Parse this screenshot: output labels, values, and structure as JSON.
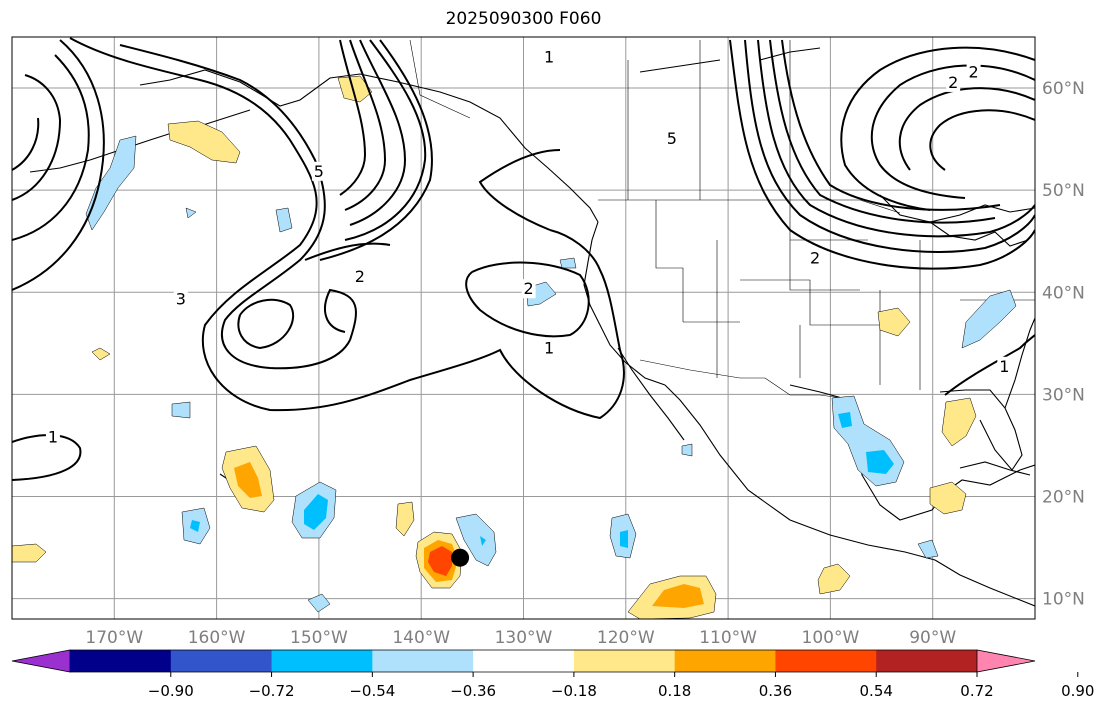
{
  "title": "2025090300 F060",
  "map": {
    "extent_lon": [
      -180,
      -80
    ],
    "extent_lat": [
      8,
      65
    ],
    "lon_ticks": [
      {
        "lon": -170,
        "label": "170°W"
      },
      {
        "lon": -160,
        "label": "160°W"
      },
      {
        "lon": -150,
        "label": "150°W"
      },
      {
        "lon": -140,
        "label": "140°W"
      },
      {
        "lon": -130,
        "label": "130°W"
      },
      {
        "lon": -120,
        "label": "120°W"
      },
      {
        "lon": -110,
        "label": "110°W"
      },
      {
        "lon": -100,
        "label": "100°W"
      },
      {
        "lon": -90,
        "label": "90°W"
      }
    ],
    "lat_ticks": [
      {
        "lat": 60,
        "label": "60°N"
      },
      {
        "lat": 50,
        "label": "50°N"
      },
      {
        "lat": 40,
        "label": "40°N"
      },
      {
        "lat": 30,
        "label": "30°N"
      },
      {
        "lat": 20,
        "label": "20°N"
      },
      {
        "lat": 10,
        "label": "10°N"
      }
    ],
    "contour_labels": [
      {
        "text": "1",
        "lon": -176,
        "lat": 25.8
      },
      {
        "text": "2",
        "lon": -146,
        "lat": 41.5
      },
      {
        "text": "3",
        "lon": -163.5,
        "lat": 39.3
      },
      {
        "text": "2",
        "lon": -129.5,
        "lat": 40.3
      },
      {
        "text": "1",
        "lon": -127.5,
        "lat": 34.5
      },
      {
        "text": "5",
        "lon": -150,
        "lat": 51.8
      },
      {
        "text": "1",
        "lon": -127.5,
        "lat": 63
      },
      {
        "text": "5",
        "lon": -115.5,
        "lat": 55
      },
      {
        "text": "2",
        "lon": -101.5,
        "lat": 43.3
      },
      {
        "text": "1",
        "lon": -83,
        "lat": 32.7
      },
      {
        "text": "2",
        "lon": -88,
        "lat": 60.5
      },
      {
        "text": "2",
        "lon": -86,
        "lat": 61.5
      }
    ],
    "storm_marker": {
      "lon": -136.2,
      "lat": 14
    }
  },
  "colorbar": {
    "colors": [
      "#9b30d0",
      "#00008b",
      "#3355cc",
      "#00bfff",
      "#afe1fc",
      "#ffffff",
      "#ffe88a",
      "#ffa500",
      "#ff4500",
      "#b22222",
      "#ff85b0"
    ],
    "tick_labels": [
      "−0.90",
      "−0.72",
      "−0.54",
      "−0.36",
      "−0.18",
      "0.18",
      "0.36",
      "0.54",
      "0.72",
      "0.90"
    ]
  }
}
